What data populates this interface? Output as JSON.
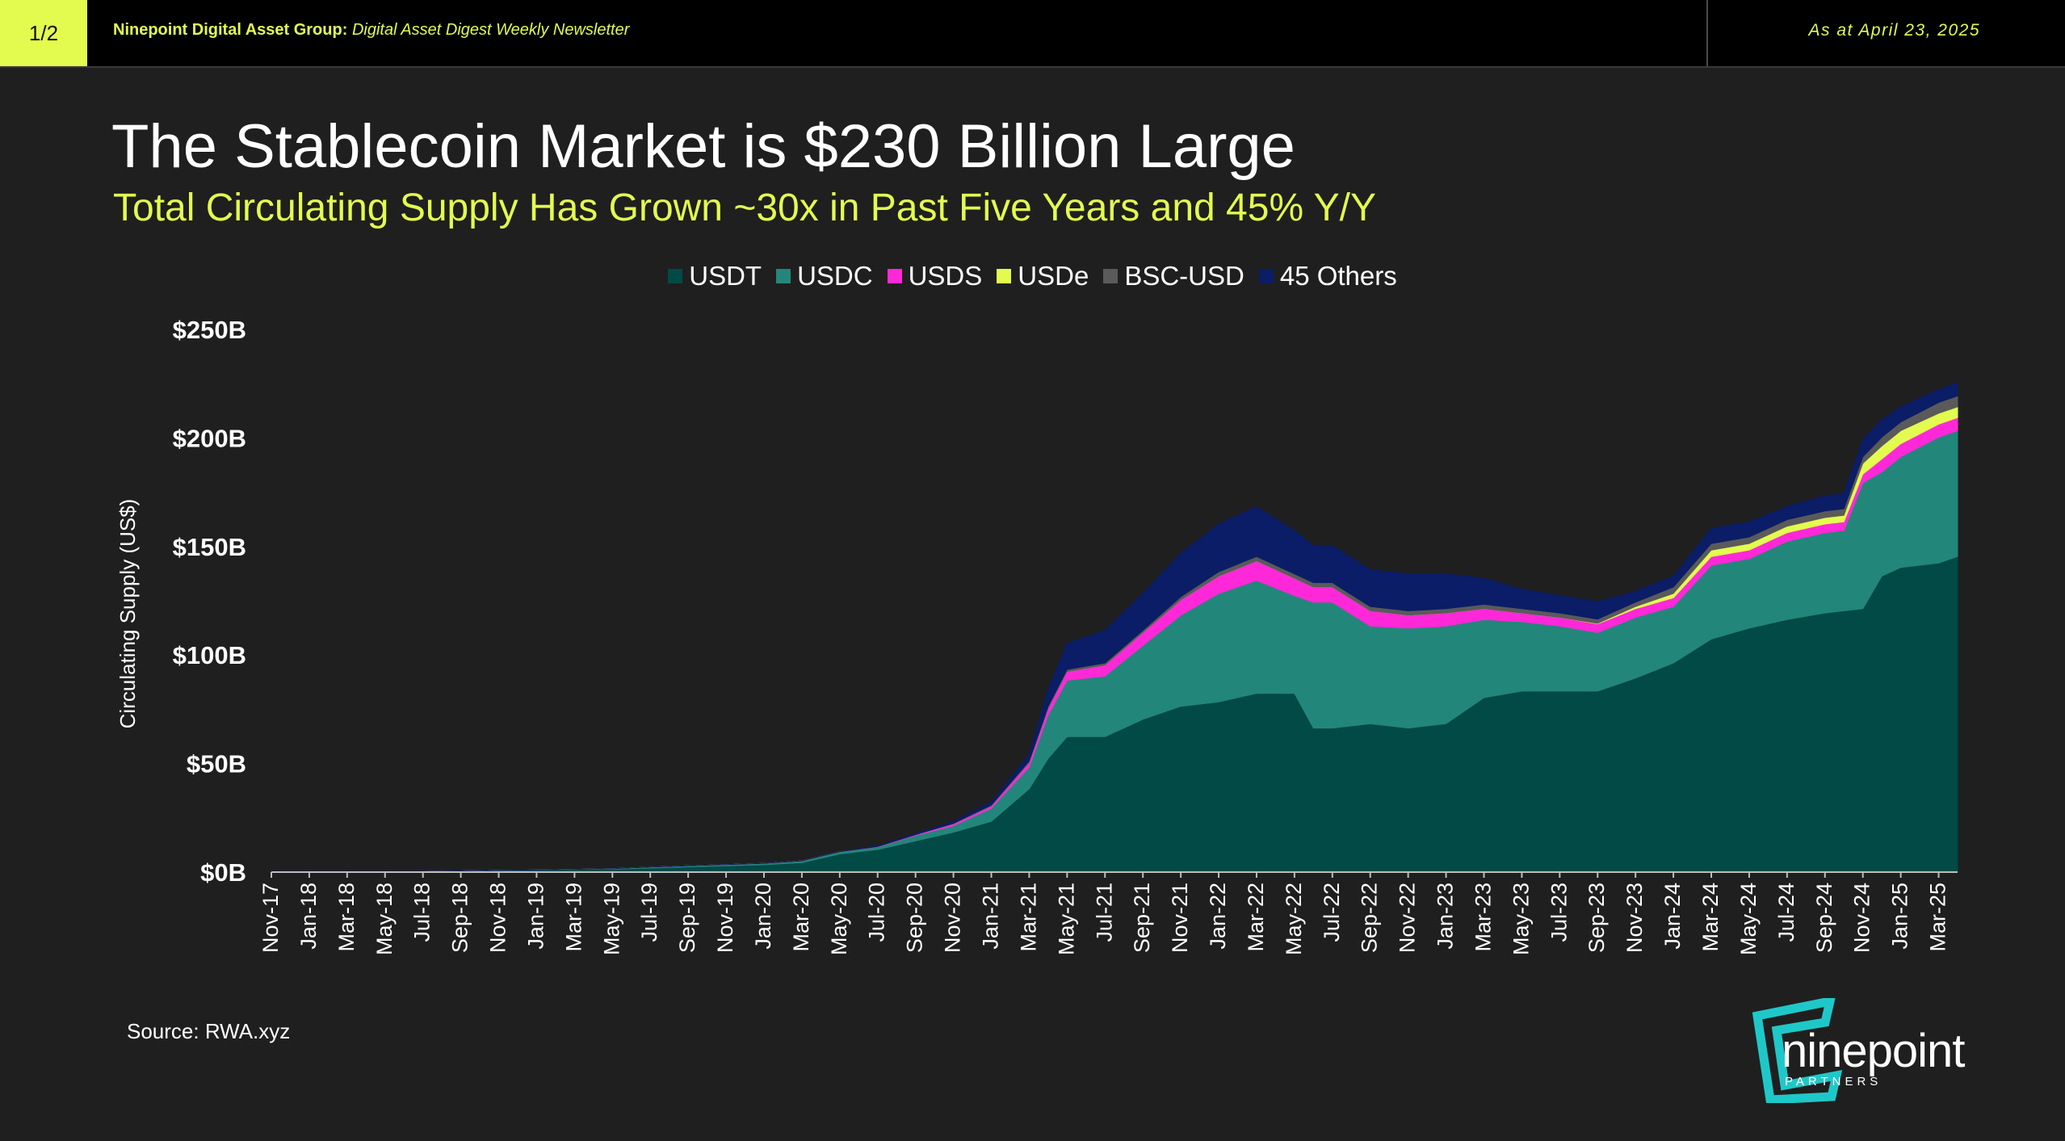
{
  "header": {
    "page_indicator": "1/2",
    "org": "Ninepoint Digital Asset Group:",
    "publication": "Digital Asset Digest Weekly Newsletter",
    "date": "As at April 23, 2025"
  },
  "slide": {
    "title": "The Stablecoin Market is $230 Billion Large",
    "subtitle": "Total Circulating Supply Has Grown ~30x in Past Five Years and 45% Y/Y"
  },
  "footer": {
    "source": "Source: RWA.xyz"
  },
  "logo": {
    "name": "ninepoint",
    "sub": "PARTNERS"
  },
  "colors": {
    "background": "#1f1f1f",
    "accent": "#e3fb4e",
    "logo": "#1fc8c8"
  },
  "chart_data": {
    "type": "area",
    "stacked": true,
    "title": "",
    "ylabel": "Circulating Supply (US$)",
    "xlabel": "",
    "ylim": [
      0,
      250
    ],
    "yticks": [
      0,
      50,
      100,
      150,
      200,
      250
    ],
    "ytick_labels": [
      "$0B",
      "$50B",
      "$100B",
      "$150B",
      "$200B",
      "$250B"
    ],
    "legend_position": "top-center",
    "grid": false,
    "x_tick_labels": [
      "Nov-17",
      "Jan-18",
      "Mar-18",
      "May-18",
      "Jul-18",
      "Sep-18",
      "Nov-18",
      "Jan-19",
      "Mar-19",
      "May-19",
      "Jul-19",
      "Sep-19",
      "Nov-19",
      "Jan-20",
      "Mar-20",
      "May-20",
      "Jul-20",
      "Sep-20",
      "Nov-20",
      "Jan-21",
      "Mar-21",
      "May-21",
      "Jul-21",
      "Sep-21",
      "Nov-21",
      "Jan-22",
      "Mar-22",
      "May-22",
      "Jul-22",
      "Sep-22",
      "Nov-22",
      "Jan-23",
      "Mar-23",
      "May-23",
      "Jul-23",
      "Sep-23",
      "Nov-23",
      "Jan-24",
      "Mar-24",
      "May-24",
      "Jul-24",
      "Sep-24",
      "Nov-24",
      "Jan-25",
      "Mar-25"
    ],
    "x": [
      "Nov-17",
      "Jan-18",
      "Mar-18",
      "May-18",
      "Jul-18",
      "Sep-18",
      "Nov-18",
      "Jan-19",
      "Mar-19",
      "May-19",
      "Jul-19",
      "Sep-19",
      "Nov-19",
      "Jan-20",
      "Mar-20",
      "May-20",
      "Jul-20",
      "Sep-20",
      "Nov-20",
      "Jan-21",
      "Mar-21",
      "Apr-21",
      "May-21",
      "Jul-21",
      "Sep-21",
      "Nov-21",
      "Jan-22",
      "Mar-22",
      "May-22",
      "Jun-22",
      "Jul-22",
      "Sep-22",
      "Nov-22",
      "Jan-23",
      "Mar-23",
      "May-23",
      "Jul-23",
      "Sep-23",
      "Nov-23",
      "Jan-24",
      "Mar-24",
      "May-24",
      "Jul-24",
      "Sep-24",
      "Oct-24",
      "Nov-24",
      "Dec-24",
      "Jan-25",
      "Mar-25",
      "Apr-25"
    ],
    "series": [
      {
        "name": "USDT",
        "color": "#014a46",
        "values": [
          0,
          0,
          0,
          0,
          0,
          0.2,
          0.5,
          0.5,
          0.8,
          1,
          1.5,
          2,
          2.5,
          3,
          4,
          8,
          10,
          14,
          18,
          23,
          38,
          52,
          62,
          62,
          70,
          76,
          78,
          82,
          82,
          66,
          66,
          68,
          66,
          68,
          80,
          83,
          83,
          83,
          89,
          96,
          107,
          112,
          116,
          119,
          120,
          121,
          136,
          140,
          142,
          145
        ]
      },
      {
        "name": "USDC",
        "color": "#23867a",
        "values": [
          0,
          0,
          0,
          0,
          0,
          0,
          0,
          0.1,
          0.1,
          0.2,
          0.4,
          0.5,
          0.6,
          0.6,
          0.8,
          1,
          1.2,
          2.5,
          3,
          6,
          10,
          20,
          26,
          28,
          34,
          42,
          50,
          52,
          45,
          58,
          58,
          45,
          46,
          45,
          36,
          32,
          30,
          27,
          28,
          26,
          34,
          32,
          36,
          37,
          37,
          58,
          48,
          51,
          58,
          58
        ]
      },
      {
        "name": "USDS",
        "color": "#ff28d8",
        "values": [
          0,
          0,
          0,
          0,
          0,
          0,
          0,
          0,
          0,
          0,
          0,
          0,
          0,
          0,
          0,
          0,
          0.2,
          0.4,
          0.8,
          1,
          2,
          3,
          4,
          5,
          6,
          7,
          8,
          9,
          8,
          7,
          7,
          7,
          6,
          6,
          5,
          4,
          4,
          4,
          4,
          4,
          4,
          4,
          4,
          4,
          4,
          4,
          6,
          6,
          6,
          6
        ]
      },
      {
        "name": "USDe",
        "color": "#e3fb4e",
        "values": [
          0,
          0,
          0,
          0,
          0,
          0,
          0,
          0,
          0,
          0,
          0,
          0,
          0,
          0,
          0,
          0,
          0,
          0,
          0,
          0,
          0,
          0,
          0,
          0,
          0,
          0,
          0,
          0,
          0,
          0,
          0,
          0,
          0,
          0,
          0,
          0,
          0,
          0.2,
          1,
          2,
          3,
          3,
          3,
          3,
          3,
          5,
          6,
          6,
          5,
          5
        ]
      },
      {
        "name": "BSC-USD",
        "color": "#5a5a5a",
        "values": [
          0,
          0,
          0,
          0,
          0,
          0,
          0,
          0,
          0,
          0,
          0,
          0,
          0,
          0,
          0,
          0,
          0,
          0,
          0.3,
          0.5,
          0.8,
          1,
          1,
          1,
          1,
          1.5,
          2,
          2,
          2,
          2,
          2,
          2,
          2,
          2,
          2,
          2,
          2,
          2,
          2,
          3,
          3,
          3,
          3,
          3,
          3,
          3,
          4,
          4,
          5,
          5
        ]
      },
      {
        "name": "45 Others",
        "color": "#0b1d66",
        "values": [
          0,
          0,
          0,
          0,
          0,
          0,
          0,
          0,
          0,
          0,
          0,
          0,
          0,
          0,
          0,
          0,
          0.3,
          0.5,
          0.9,
          1.5,
          3,
          8,
          12,
          15,
          17,
          20,
          22,
          23,
          20,
          17,
          17,
          17,
          17,
          16,
          12,
          9,
          8,
          8,
          5,
          5,
          7,
          7,
          6,
          7,
          7,
          8,
          8,
          7,
          6,
          6
        ]
      }
    ]
  }
}
